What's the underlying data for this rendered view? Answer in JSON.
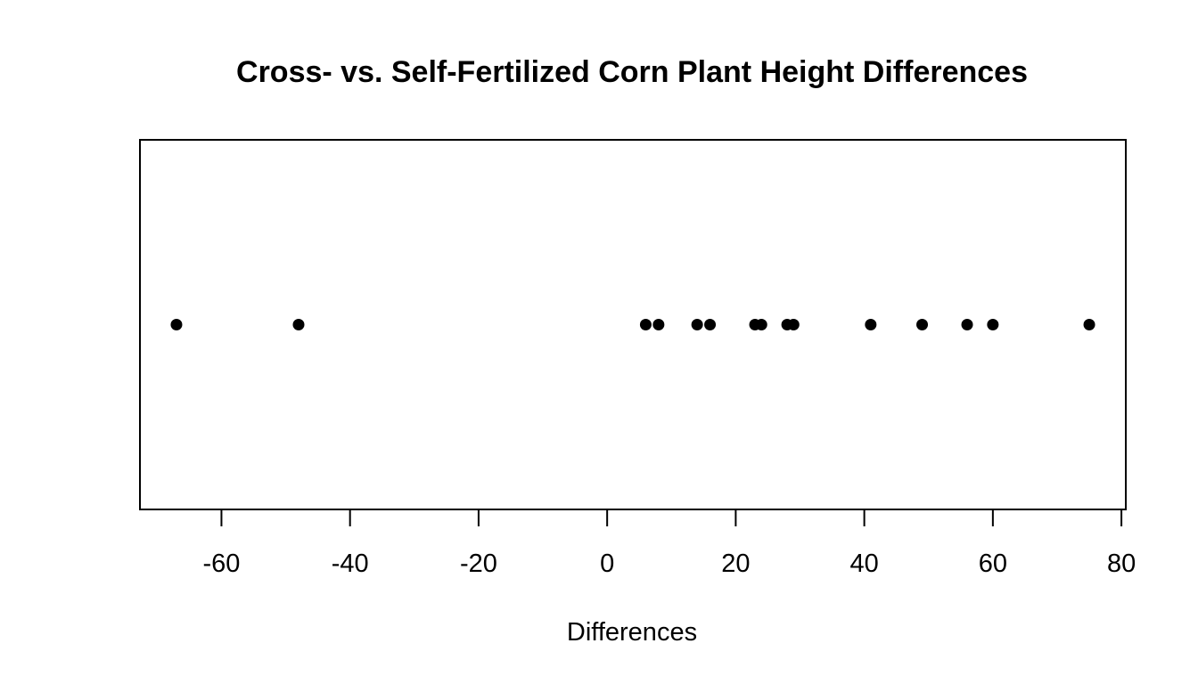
{
  "chart_data": {
    "type": "scatter",
    "title": "Cross- vs. Self-Fertilized Corn Plant Height Differences",
    "xlabel": "Differences",
    "ylabel": "",
    "x": [
      -67,
      -48,
      6,
      8,
      14,
      16,
      23,
      24,
      28,
      29,
      41,
      49,
      56,
      60,
      75
    ],
    "xticks": [
      -60,
      -40,
      -20,
      0,
      20,
      40,
      60,
      80
    ],
    "xlim": [
      -72.68,
      80.68
    ],
    "grid": false,
    "legend": "none",
    "colors": {
      "points": "#000000",
      "axes": "#000000",
      "background": "#ffffff"
    }
  }
}
